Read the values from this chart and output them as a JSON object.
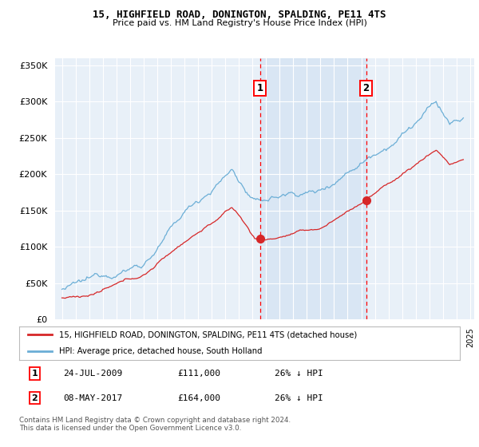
{
  "title": "15, HIGHFIELD ROAD, DONINGTON, SPALDING, PE11 4TS",
  "subtitle": "Price paid vs. HM Land Registry's House Price Index (HPI)",
  "legend_label_red": "15, HIGHFIELD ROAD, DONINGTON, SPALDING, PE11 4TS (detached house)",
  "legend_label_blue": "HPI: Average price, detached house, South Holland",
  "marker1_date": "24-JUL-2009",
  "marker1_price": 111000,
  "marker1_label": "26% ↓ HPI",
  "marker1_x": 2009.56,
  "marker2_date": "08-MAY-2017",
  "marker2_price": 164000,
  "marker2_label": "26% ↓ HPI",
  "marker2_x": 2017.36,
  "footer": "Contains HM Land Registry data © Crown copyright and database right 2024.\nThis data is licensed under the Open Government Licence v3.0.",
  "background_color": "#ffffff",
  "plot_bg_color": "#e8f0f8",
  "shade_color": "#c8dcf0",
  "ylim_min": 0,
  "ylim_max": 360000,
  "yticks": [
    0,
    50000,
    100000,
    150000,
    200000,
    250000,
    300000,
    350000
  ],
  "ytick_labels": [
    "£0",
    "£50K",
    "£100K",
    "£150K",
    "£200K",
    "£250K",
    "£300K",
    "£350K"
  ],
  "xlim_min": 1994.5,
  "xlim_max": 2025.3,
  "blue_color": "#6baed6",
  "red_color": "#d62728"
}
